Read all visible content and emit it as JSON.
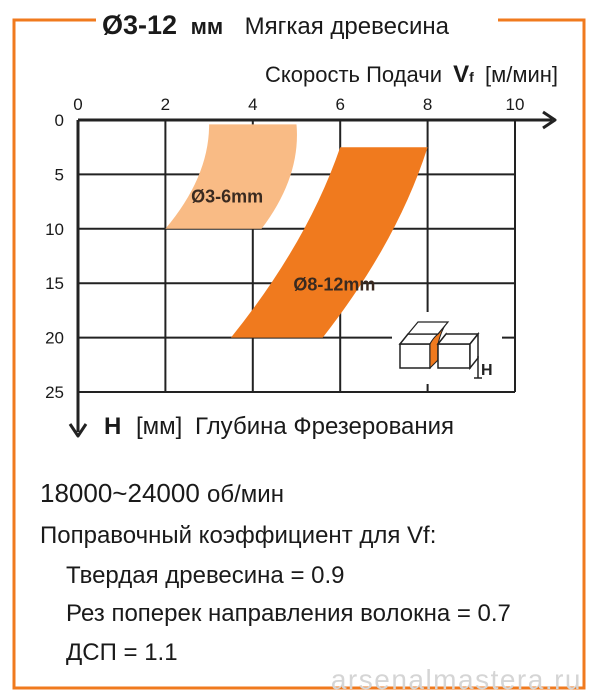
{
  "header": {
    "diameter_label": "Ø3-12",
    "diameter_unit": "мм",
    "material": "Мягкая древесина"
  },
  "chart_data": {
    "type": "area",
    "x_axis": {
      "label_prefix": "Скорость Подачи",
      "symbol": "V",
      "subscript": "f",
      "unit": "[м/мин]",
      "range": [
        0,
        10
      ],
      "ticks": [
        0,
        2,
        4,
        6,
        8,
        10
      ],
      "position": "top"
    },
    "y_axis": {
      "symbol": "H",
      "unit": "[мм]",
      "label_suffix": "Глубина Фрезерования",
      "range": [
        0,
        25
      ],
      "ticks": [
        0,
        5,
        10,
        15,
        20,
        25
      ],
      "inverted": true
    },
    "grid": true,
    "series": [
      {
        "name": "Ø3-6mm",
        "color": "#f9bb85",
        "polygon": [
          [
            3.0,
            0.4
          ],
          [
            5.0,
            0.4
          ],
          [
            4.2,
            10.0
          ],
          [
            2.0,
            10.0
          ]
        ]
      },
      {
        "name": "Ø8-12mm",
        "color": "#f07a1e",
        "polygon": [
          [
            6.0,
            2.5
          ],
          [
            8.0,
            2.5
          ],
          [
            5.6,
            20.0
          ],
          [
            3.5,
            20.0
          ]
        ]
      }
    ],
    "inset_label": "H"
  },
  "info": {
    "rpm_value": "18000~24000",
    "rpm_unit": "об/мин",
    "coef_title": "Поправочный коэффициент для Vf:",
    "coefficients": [
      "Твердая древесина = 0.9",
      "Рез поперек направления волокна = 0.7",
      "ДСП = 1.1"
    ]
  },
  "watermark": "arsenalmastera.ru",
  "colors": {
    "frame": "#f07a1e",
    "light_band": "#f9bb85",
    "dark_band": "#f07a1e",
    "axis": "#222222",
    "grid": "#222222"
  }
}
